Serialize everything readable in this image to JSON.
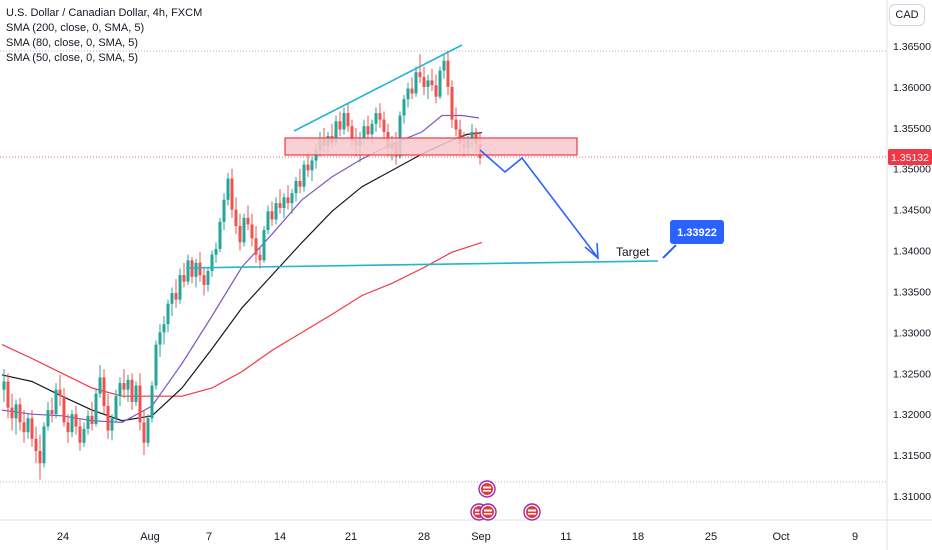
{
  "legend": {
    "title": "U.S. Dollar / Canadian Dollar, 4h, FXCM",
    "sma200": "SMA (200, close, 0, SMA, 5)",
    "sma80": "SMA (80, close, 0, SMA, 5)",
    "sma50": "SMA (50, close, 0, SMA, 5)"
  },
  "currency_button": "CAD",
  "chart_data": {
    "type": "candlestick",
    "y_axis": {
      "ticks": [
        "1.36500",
        "1.36000",
        "1.35500",
        "1.35000",
        "1.34500",
        "1.34000",
        "1.33500",
        "1.33000",
        "1.32500",
        "1.32000",
        "1.31500",
        "1.31000"
      ],
      "range": [
        1.3085,
        1.369
      ]
    },
    "x_axis": {
      "ticks": [
        "24",
        "Aug",
        "7",
        "14",
        "21",
        "28",
        "Sep",
        "11",
        "18",
        "25",
        "Oct",
        "9"
      ]
    },
    "price_label": "1.35132",
    "target_label": "Target",
    "target_value": "1.33922",
    "colors": {
      "up": "#26a69a",
      "down": "#ef5350",
      "sma200": "#f23645",
      "sma80": "#131722",
      "sma50": "#7e57c2",
      "trendline": "#22b5d0",
      "projection": "#2962ff",
      "zone_fill": "#f8c9cc",
      "zone_stroke": "#f23645",
      "price_badge": "#f23645",
      "target_badge": "#2962ff"
    },
    "sma200": [
      [
        0,
        1.3285
      ],
      [
        30,
        1.3268
      ],
      [
        60,
        1.325
      ],
      [
        90,
        1.3232
      ],
      [
        120,
        1.3222
      ],
      [
        150,
        1.3222
      ],
      [
        180,
        1.3222
      ],
      [
        210,
        1.3232
      ],
      [
        240,
        1.3252
      ],
      [
        270,
        1.3278
      ],
      [
        300,
        1.33
      ],
      [
        330,
        1.3322
      ],
      [
        360,
        1.3345
      ],
      [
        390,
        1.336
      ],
      [
        420,
        1.3378
      ],
      [
        450,
        1.3398
      ],
      [
        480,
        1.341
      ]
    ],
    "sma80": [
      [
        0,
        1.3248
      ],
      [
        30,
        1.324
      ],
      [
        60,
        1.3222
      ],
      [
        90,
        1.3205
      ],
      [
        120,
        1.3192
      ],
      [
        150,
        1.3198
      ],
      [
        180,
        1.3232
      ],
      [
        210,
        1.328
      ],
      [
        240,
        1.333
      ],
      [
        270,
        1.337
      ],
      [
        300,
        1.341
      ],
      [
        330,
        1.3448
      ],
      [
        360,
        1.3478
      ],
      [
        390,
        1.3498
      ],
      [
        420,
        1.3518
      ],
      [
        450,
        1.3535
      ],
      [
        465,
        1.3542
      ],
      [
        480,
        1.3544
      ]
    ],
    "sma50": [
      [
        0,
        1.3205
      ],
      [
        30,
        1.32
      ],
      [
        60,
        1.3198
      ],
      [
        90,
        1.3192
      ],
      [
        120,
        1.319
      ],
      [
        150,
        1.321
      ],
      [
        180,
        1.3262
      ],
      [
        210,
        1.332
      ],
      [
        240,
        1.338
      ],
      [
        270,
        1.342
      ],
      [
        300,
        1.3462
      ],
      [
        330,
        1.349
      ],
      [
        360,
        1.3512
      ],
      [
        390,
        1.353
      ],
      [
        420,
        1.3545
      ],
      [
        440,
        1.3565
      ],
      [
        460,
        1.3565
      ],
      [
        477,
        1.3562
      ]
    ],
    "candles": [
      [
        2,
        1.323,
        1.3255,
        1.3215,
        1.324
      ],
      [
        6,
        1.324,
        1.325,
        1.3195,
        1.3208
      ],
      [
        10,
        1.3208,
        1.3225,
        1.318,
        1.3195
      ],
      [
        14,
        1.3195,
        1.3218,
        1.3175,
        1.3212
      ],
      [
        18,
        1.3212,
        1.322,
        1.318,
        1.319
      ],
      [
        22,
        1.319,
        1.3205,
        1.3165,
        1.3178
      ],
      [
        26,
        1.3178,
        1.32,
        1.317,
        1.3195
      ],
      [
        30,
        1.3195,
        1.3205,
        1.316,
        1.317
      ],
      [
        34,
        1.317,
        1.3185,
        1.314,
        1.3155
      ],
      [
        38,
        1.3155,
        1.3175,
        1.312,
        1.314
      ],
      [
        42,
        1.314,
        1.319,
        1.3135,
        1.3185
      ],
      [
        46,
        1.3185,
        1.3215,
        1.318,
        1.3205
      ],
      [
        50,
        1.3205,
        1.322,
        1.319,
        1.32
      ],
      [
        54,
        1.32,
        1.3238,
        1.3195,
        1.323
      ],
      [
        58,
        1.323,
        1.3248,
        1.321,
        1.3222
      ],
      [
        62,
        1.3222,
        1.3232,
        1.3185,
        1.319
      ],
      [
        66,
        1.319,
        1.32,
        1.3165,
        1.3178
      ],
      [
        70,
        1.3178,
        1.3205,
        1.3172,
        1.32
      ],
      [
        74,
        1.32,
        1.321,
        1.3175,
        1.3185
      ],
      [
        78,
        1.3185,
        1.3195,
        1.3155,
        1.3165
      ],
      [
        82,
        1.3165,
        1.319,
        1.316,
        1.3182
      ],
      [
        86,
        1.3182,
        1.3205,
        1.3175,
        1.3198
      ],
      [
        90,
        1.3198,
        1.3215,
        1.318,
        1.3188
      ],
      [
        94,
        1.3188,
        1.323,
        1.3185,
        1.3225
      ],
      [
        98,
        1.3225,
        1.326,
        1.322,
        1.3245
      ],
      [
        102,
        1.3245,
        1.3255,
        1.32,
        1.321
      ],
      [
        106,
        1.321,
        1.3225,
        1.317,
        1.318
      ],
      [
        110,
        1.318,
        1.32,
        1.3168,
        1.3195
      ],
      [
        114,
        1.3195,
        1.323,
        1.319,
        1.3222
      ],
      [
        118,
        1.3222,
        1.3245,
        1.321,
        1.3238
      ],
      [
        122,
        1.3238,
        1.3255,
        1.322,
        1.323
      ],
      [
        126,
        1.323,
        1.3248,
        1.3215,
        1.3242
      ],
      [
        130,
        1.3242,
        1.325,
        1.3205,
        1.3215
      ],
      [
        134,
        1.3215,
        1.324,
        1.321,
        1.3235
      ],
      [
        138,
        1.3235,
        1.325,
        1.318,
        1.319
      ],
      [
        142,
        1.319,
        1.3205,
        1.315,
        1.3165
      ],
      [
        146,
        1.3165,
        1.32,
        1.316,
        1.3195
      ],
      [
        150,
        1.3195,
        1.324,
        1.319,
        1.3235
      ],
      [
        154,
        1.3235,
        1.329,
        1.323,
        1.3285
      ],
      [
        158,
        1.3285,
        1.331,
        1.327,
        1.33
      ],
      [
        162,
        1.33,
        1.332,
        1.3285,
        1.331
      ],
      [
        166,
        1.331,
        1.334,
        1.33,
        1.3335
      ],
      [
        170,
        1.3335,
        1.3355,
        1.332,
        1.3348
      ],
      [
        174,
        1.3348,
        1.3365,
        1.333,
        1.334
      ],
      [
        178,
        1.334,
        1.3378,
        1.3335,
        1.337
      ],
      [
        182,
        1.337,
        1.3385,
        1.3355,
        1.3362
      ],
      [
        186,
        1.3362,
        1.3395,
        1.3358,
        1.3388
      ],
      [
        190,
        1.3388,
        1.3392,
        1.336,
        1.3368
      ],
      [
        194,
        1.3368,
        1.339,
        1.3355,
        1.3385
      ],
      [
        198,
        1.3385,
        1.3398,
        1.3362,
        1.337
      ],
      [
        202,
        1.337,
        1.338,
        1.3345,
        1.3358
      ],
      [
        206,
        1.3358,
        1.338,
        1.335,
        1.3375
      ],
      [
        210,
        1.3375,
        1.34,
        1.3368,
        1.3395
      ],
      [
        214,
        1.3395,
        1.341,
        1.3385,
        1.3402
      ],
      [
        218,
        1.3402,
        1.344,
        1.3398,
        1.3435
      ],
      [
        222,
        1.3435,
        1.347,
        1.3425,
        1.3462
      ],
      [
        226,
        1.3462,
        1.3495,
        1.3455,
        1.3488
      ],
      [
        230,
        1.3488,
        1.35,
        1.344,
        1.345
      ],
      [
        234,
        1.345,
        1.3465,
        1.342,
        1.343
      ],
      [
        238,
        1.343,
        1.3445,
        1.34,
        1.341
      ],
      [
        242,
        1.341,
        1.3445,
        1.3405,
        1.344
      ],
      [
        246,
        1.344,
        1.3455,
        1.3425,
        1.3432
      ],
      [
        250,
        1.3432,
        1.3445,
        1.3405,
        1.3415
      ],
      [
        254,
        1.3415,
        1.343,
        1.3385,
        1.3395
      ],
      [
        258,
        1.3395,
        1.3405,
        1.3378,
        1.3388
      ],
      [
        262,
        1.3388,
        1.343,
        1.3385,
        1.3425
      ],
      [
        266,
        1.3425,
        1.3455,
        1.342,
        1.3448
      ],
      [
        270,
        1.3448,
        1.346,
        1.343,
        1.3438
      ],
      [
        274,
        1.3438,
        1.3465,
        1.3432,
        1.3458
      ],
      [
        278,
        1.3458,
        1.3475,
        1.3445,
        1.3452
      ],
      [
        282,
        1.3452,
        1.347,
        1.344,
        1.3465
      ],
      [
        286,
        1.3465,
        1.348,
        1.345,
        1.3458
      ],
      [
        290,
        1.3458,
        1.3475,
        1.3445,
        1.347
      ],
      [
        294,
        1.347,
        1.349,
        1.346,
        1.3485
      ],
      [
        298,
        1.3485,
        1.35,
        1.347,
        1.3478
      ],
      [
        302,
        1.3478,
        1.351,
        1.3472,
        1.3505
      ],
      [
        306,
        1.3505,
        1.352,
        1.349,
        1.3498
      ],
      [
        310,
        1.3498,
        1.3515,
        1.3485,
        1.351
      ],
      [
        314,
        1.351,
        1.353,
        1.35,
        1.3522
      ],
      [
        318,
        1.3522,
        1.3545,
        1.3515,
        1.3538
      ],
      [
        322,
        1.3538,
        1.355,
        1.352,
        1.3528
      ],
      [
        326,
        1.3528,
        1.3545,
        1.3518,
        1.354
      ],
      [
        330,
        1.354,
        1.3555,
        1.3525,
        1.3532
      ],
      [
        334,
        1.3532,
        1.3565,
        1.3528,
        1.3558
      ],
      [
        338,
        1.3558,
        1.357,
        1.354,
        1.3548
      ],
      [
        342,
        1.3548,
        1.3575,
        1.3542,
        1.3568
      ],
      [
        346,
        1.3568,
        1.358,
        1.3545,
        1.3552
      ],
      [
        350,
        1.3552,
        1.356,
        1.3525,
        1.3535
      ],
      [
        354,
        1.3535,
        1.355,
        1.3515,
        1.3528
      ],
      [
        358,
        1.3528,
        1.3545,
        1.3508,
        1.3538
      ],
      [
        362,
        1.3538,
        1.356,
        1.353,
        1.3552
      ],
      [
        366,
        1.3552,
        1.3565,
        1.3535,
        1.3542
      ],
      [
        370,
        1.3542,
        1.356,
        1.353,
        1.3555
      ],
      [
        374,
        1.3555,
        1.3575,
        1.3545,
        1.3568
      ],
      [
        378,
        1.3568,
        1.358,
        1.355,
        1.356
      ],
      [
        382,
        1.356,
        1.357,
        1.3535,
        1.3545
      ],
      [
        386,
        1.3545,
        1.3555,
        1.3515,
        1.3525
      ],
      [
        390,
        1.3525,
        1.354,
        1.351,
        1.3532
      ],
      [
        394,
        1.3532,
        1.3545,
        1.3505,
        1.3515
      ],
      [
        398,
        1.3515,
        1.357,
        1.3512,
        1.3565
      ],
      [
        402,
        1.3565,
        1.359,
        1.3555,
        1.3585
      ],
      [
        406,
        1.3585,
        1.3605,
        1.3575,
        1.3598
      ],
      [
        410,
        1.3598,
        1.3612,
        1.3585,
        1.3592
      ],
      [
        414,
        1.3592,
        1.3625,
        1.3588,
        1.3618
      ],
      [
        418,
        1.3618,
        1.364,
        1.3605,
        1.3612
      ],
      [
        422,
        1.3612,
        1.3625,
        1.359,
        1.36
      ],
      [
        426,
        1.36,
        1.3615,
        1.3585,
        1.3608
      ],
      [
        430,
        1.3608,
        1.3622,
        1.3595,
        1.3602
      ],
      [
        434,
        1.3602,
        1.3615,
        1.358,
        1.3588
      ],
      [
        438,
        1.3588,
        1.3625,
        1.3585,
        1.362
      ],
      [
        442,
        1.362,
        1.364,
        1.361,
        1.3632
      ],
      [
        446,
        1.3632,
        1.3642,
        1.359,
        1.36
      ],
      [
        450,
        1.36,
        1.3608,
        1.355,
        1.356
      ],
      [
        454,
        1.356,
        1.3575,
        1.354,
        1.3548
      ],
      [
        458,
        1.3548,
        1.356,
        1.352,
        1.353
      ],
      [
        462,
        1.353,
        1.3545,
        1.3515,
        1.3525
      ],
      [
        466,
        1.3525,
        1.354,
        1.3518,
        1.3535
      ],
      [
        470,
        1.3535,
        1.3555,
        1.3525,
        1.3545
      ],
      [
        474,
        1.3545,
        1.355,
        1.352,
        1.353
      ],
      [
        478,
        1.353,
        1.3545,
        1.3505,
        1.3513
      ]
    ]
  }
}
